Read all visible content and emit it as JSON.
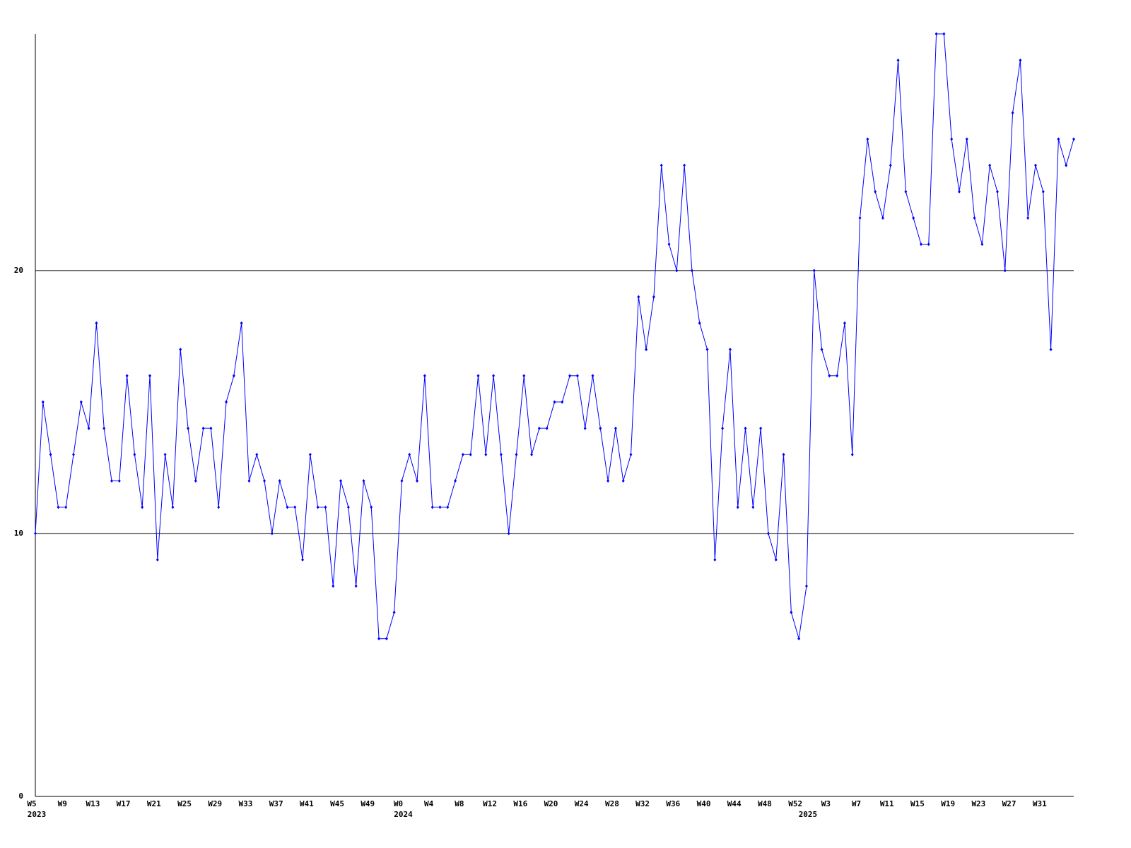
{
  "chart_data": {
    "type": "line",
    "color": "#0000ff",
    "grid": true,
    "ylim": [
      0,
      29
    ],
    "yticks": [
      0,
      10,
      20
    ],
    "categories": [
      "W5",
      null,
      null,
      null,
      "W9",
      null,
      null,
      null,
      "W13",
      null,
      null,
      null,
      "W17",
      null,
      null,
      null,
      "W21",
      null,
      null,
      null,
      "W25",
      null,
      null,
      null,
      "W29",
      null,
      null,
      null,
      "W33",
      null,
      null,
      null,
      "W37",
      null,
      null,
      null,
      "W41",
      null,
      null,
      null,
      "W45",
      null,
      null,
      null,
      "W49",
      null,
      null,
      null,
      "W0",
      null,
      null,
      null,
      "W4",
      null,
      null,
      null,
      "W8",
      null,
      null,
      null,
      "W12",
      null,
      null,
      null,
      "W16",
      null,
      null,
      null,
      "W20",
      null,
      null,
      null,
      "W24",
      null,
      null,
      null,
      "W28",
      null,
      null,
      null,
      "W32",
      null,
      null,
      null,
      "W36",
      null,
      null,
      null,
      "W40",
      null,
      null,
      null,
      "W44",
      null,
      null,
      null,
      "W48",
      null,
      null,
      null,
      "W52",
      null,
      null,
      null,
      "W3",
      null,
      null,
      null,
      "W7",
      null,
      null,
      null,
      "W11",
      null,
      null,
      null,
      "W15",
      null,
      null,
      null,
      "W19",
      null,
      null,
      null,
      "W23",
      null,
      null,
      null,
      "W27",
      null,
      null,
      null,
      "W31",
      null,
      null,
      null,
      null
    ],
    "years": [
      "2023",
      null,
      null,
      null,
      null,
      null,
      null,
      null,
      null,
      null,
      null,
      null,
      null,
      null,
      null,
      null,
      null,
      null,
      null,
      null,
      null,
      null,
      null,
      null,
      null,
      null,
      null,
      null,
      null,
      null,
      null,
      null,
      null,
      null,
      null,
      null,
      null,
      null,
      null,
      null,
      null,
      null,
      null,
      null,
      null,
      null,
      null,
      null,
      "2024",
      null,
      null,
      null,
      null,
      null,
      null,
      null,
      null,
      null,
      null,
      null,
      null,
      null,
      null,
      null,
      null,
      null,
      null,
      null,
      null,
      null,
      null,
      null,
      null,
      null,
      null,
      null,
      null,
      null,
      null,
      null,
      null,
      null,
      null,
      null,
      null,
      null,
      null,
      null,
      null,
      null,
      null,
      null,
      null,
      null,
      null,
      null,
      null,
      null,
      null,
      null,
      null,
      "2025",
      null,
      null,
      null,
      null,
      null,
      null,
      null,
      null,
      null,
      null,
      null,
      null,
      null,
      null,
      null,
      null,
      null,
      null,
      null,
      null,
      null,
      null,
      null,
      null,
      null,
      null,
      null,
      null,
      null,
      null,
      null,
      null,
      null,
      null
    ],
    "values": [
      10,
      15,
      13,
      11,
      11,
      13,
      15,
      14,
      18,
      14,
      12,
      12,
      16,
      13,
      11,
      16,
      9,
      13,
      11,
      17,
      14,
      12,
      14,
      14,
      11,
      15,
      16,
      18,
      12,
      13,
      12,
      10,
      12,
      11,
      11,
      9,
      13,
      11,
      11,
      8,
      12,
      11,
      8,
      12,
      11,
      6,
      6,
      7,
      12,
      13,
      12,
      16,
      11,
      11,
      11,
      12,
      13,
      13,
      16,
      13,
      16,
      13,
      10,
      13,
      16,
      13,
      14,
      14,
      15,
      15,
      16,
      16,
      14,
      16,
      14,
      12,
      14,
      12,
      13,
      19,
      17,
      19,
      24,
      21,
      20,
      24,
      20,
      18,
      17,
      9,
      14,
      17,
      11,
      14,
      11,
      14,
      10,
      9,
      13,
      7,
      6,
      8,
      20,
      17,
      16,
      16,
      18,
      13,
      22,
      25,
      23,
      22,
      24,
      28,
      23,
      22,
      21,
      21,
      29,
      29,
      25,
      23,
      25,
      22,
      21,
      24,
      23,
      20,
      26,
      28,
      22,
      24,
      23,
      17,
      25,
      24,
      25
    ]
  }
}
